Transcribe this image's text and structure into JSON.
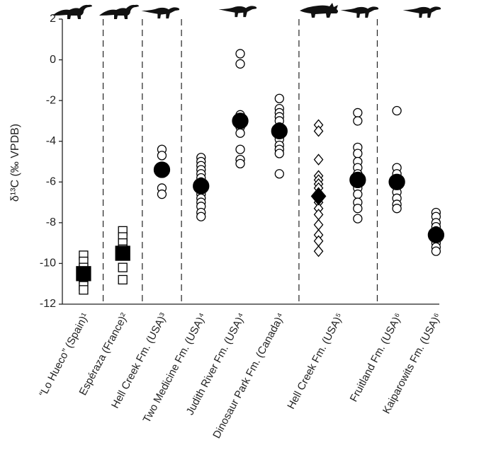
{
  "chart_data": {
    "type": "strip",
    "y_label": "δ¹³C (‰ VPDB)",
    "ylim": [
      -12,
      2
    ],
    "yticks": [
      2,
      0,
      -2,
      -4,
      -6,
      -8,
      -10,
      -12
    ],
    "xlim": [
      0.5,
      10.5
    ],
    "xticks": [
      {
        "value": 1,
        "label": "“Lo Hueco” (Spain)¹"
      },
      {
        "value": 2,
        "label": "Espéraza (France)²"
      },
      {
        "value": 3,
        "label": "Hell Creek Fm. (USA)³"
      },
      {
        "value": 4,
        "label": "Two Medicine Fm. (USA)⁴"
      },
      {
        "value": 5,
        "label": "Judith River Fm. (USA)⁴"
      },
      {
        "value": 6,
        "label": "Dinosaur Park Fm. (Canada)⁴"
      },
      {
        "value": 7.5,
        "label": "Hell Creek Fm. (USA)⁵"
      },
      {
        "value": 9,
        "label": "Fruitland Fm. (USA)⁶"
      },
      {
        "value": 10,
        "label": "Kaiparowits Fm. (USA)⁶"
      }
    ],
    "color": "#000000",
    "columns": [
      {
        "x": 1,
        "marker": "square",
        "values": [
          -9.6,
          -9.9,
          -10.2,
          -10.5,
          -10.8,
          -11.1,
          -11.3
        ],
        "mean": -10.5
      },
      {
        "x": 2,
        "marker": "square",
        "values": [
          -8.4,
          -8.7,
          -9.0,
          -9.3,
          -10.2,
          -10.8
        ],
        "mean": -9.5
      },
      {
        "x": 3,
        "marker": "circle",
        "values": [
          -4.4,
          -4.7,
          -6.3,
          -6.6
        ],
        "mean": -5.4
      },
      {
        "x": 4,
        "marker": "circle",
        "values": [
          -4.8,
          -5.0,
          -5.2,
          -5.4,
          -5.6,
          -5.8,
          -6.0,
          -6.2,
          -6.4,
          -6.6,
          -6.8,
          -7.0,
          -7.2,
          -7.5,
          -7.7
        ],
        "mean": -6.2
      },
      {
        "x": 5,
        "marker": "circle",
        "values": [
          0.3,
          -0.2,
          -2.7,
          -2.9,
          -3.3,
          -3.6,
          -4.4,
          -4.9,
          -5.1
        ],
        "mean": -3.0
      },
      {
        "x": 6,
        "marker": "circle",
        "values": [
          -1.9,
          -2.4,
          -2.6,
          -2.8,
          -3.0,
          -3.3,
          -3.6,
          -3.9,
          -4.2,
          -4.4,
          -4.6,
          -5.6
        ],
        "mean": -3.5
      },
      {
        "x": 7,
        "marker": "diamond",
        "values": [
          -3.2,
          -3.5,
          -4.9,
          -5.7,
          -5.9,
          -6.1,
          -6.3,
          -6.6,
          -6.8,
          -7.0,
          -7.3,
          -7.6,
          -8.1,
          -8.6,
          -8.9,
          -9.4
        ],
        "mean": -6.7
      },
      {
        "x": 8,
        "marker": "circle",
        "values": [
          -2.6,
          -3.0,
          -4.3,
          -4.6,
          -5.0,
          -5.3,
          -5.6,
          -5.9,
          -6.1,
          -6.3,
          -6.6,
          -7.0,
          -7.3,
          -7.8
        ],
        "mean": -5.9
      },
      {
        "x": 9,
        "marker": "circle",
        "values": [
          -2.5,
          -5.3,
          -5.6,
          -5.9,
          -6.2,
          -6.5,
          -6.8,
          -7.1,
          -7.3
        ],
        "mean": -6.0
      },
      {
        "x": 10,
        "marker": "circle",
        "values": [
          -7.5,
          -7.7,
          -8.0,
          -8.2,
          -8.4,
          -8.7,
          -9.0,
          -9.2,
          -9.4
        ],
        "mean": -8.6
      }
    ]
  }
}
